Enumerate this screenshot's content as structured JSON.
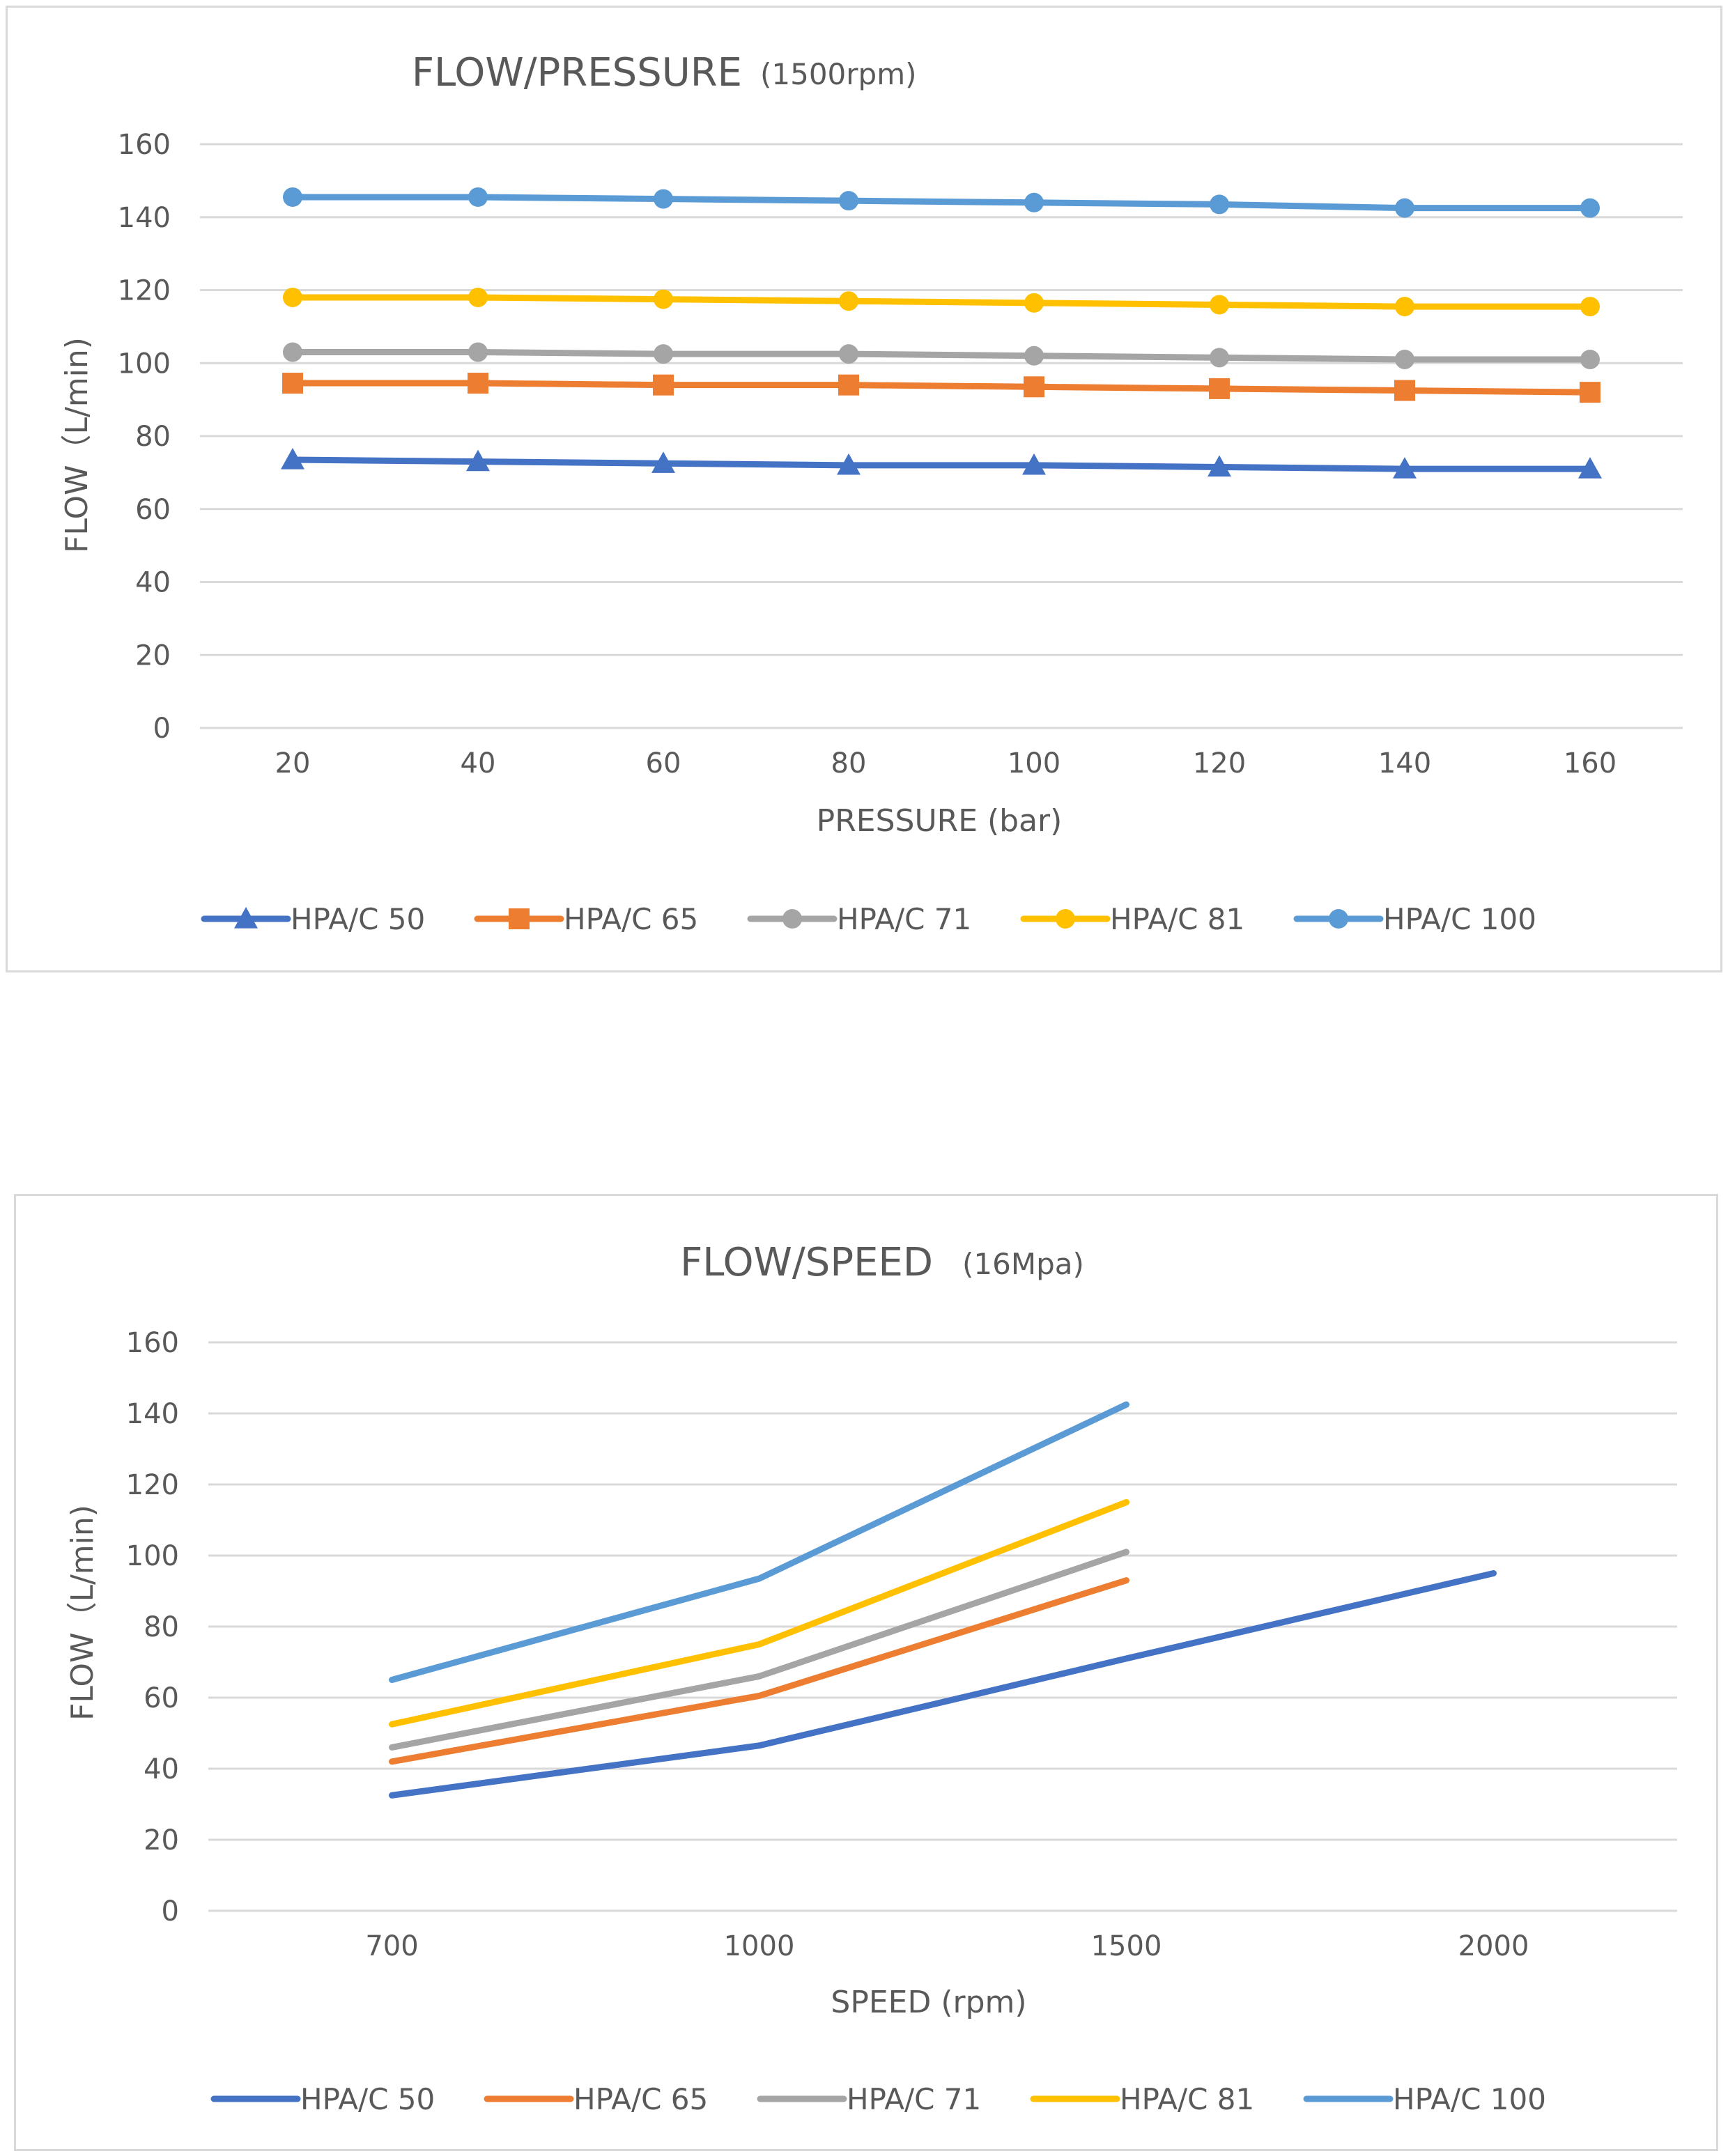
{
  "chart_data": [
    {
      "type": "line",
      "title": "FLOW/PRESSURE",
      "subtitle": "(1500rpm)",
      "xlabel": "PRESSURE (bar)",
      "ylabel": "FLOW（L/min)",
      "ylim": [
        0,
        160
      ],
      "yticks": [
        "0",
        "20",
        "40",
        "60",
        "80",
        "100",
        "120",
        "140",
        "160"
      ],
      "categories": [
        "20",
        "40",
        "60",
        "80",
        "100",
        "120",
        "140",
        "160"
      ],
      "grid": true,
      "legend_position": "bottom",
      "series": [
        {
          "name": "HPA/C 50",
          "color": "#4472c4",
          "marker": "triangle",
          "values": [
            73.5,
            73,
            72.5,
            72,
            72,
            71.5,
            71,
            71
          ]
        },
        {
          "name": "HPA/C 65",
          "color": "#ed7d31",
          "marker": "square",
          "values": [
            94.5,
            94.5,
            94,
            94,
            93.5,
            93,
            92.5,
            92
          ]
        },
        {
          "name": "HPA/C 71",
          "color": "#a5a5a5",
          "marker": "circle",
          "values": [
            103,
            103,
            102.5,
            102.5,
            102,
            101.5,
            101,
            101
          ]
        },
        {
          "name": "HPA/C 81",
          "color": "#ffc000",
          "marker": "circle",
          "values": [
            118,
            118,
            117.5,
            117,
            116.5,
            116,
            115.5,
            115.5
          ]
        },
        {
          "name": "HPA/C 100",
          "color": "#5b9bd5",
          "marker": "circle",
          "values": [
            145.5,
            145.5,
            145,
            144.5,
            144,
            143.5,
            142.5,
            142.5
          ]
        }
      ]
    },
    {
      "type": "line",
      "title": "FLOW/SPEED",
      "subtitle": "(16Mpa)",
      "xlabel": "SPEED (rpm)",
      "ylabel": "FLOW（L/min)",
      "ylim": [
        0,
        160
      ],
      "yticks": [
        "0",
        "20",
        "40",
        "60",
        "80",
        "100",
        "120",
        "140",
        "160"
      ],
      "categories": [
        "700",
        "1000",
        "1500",
        "2000"
      ],
      "grid": true,
      "legend_position": "bottom",
      "series": [
        {
          "name": "HPA/C 50",
          "color": "#4472c4",
          "marker": "none",
          "values": [
            32.5,
            46.5,
            71,
            95
          ]
        },
        {
          "name": "HPA/C 65",
          "color": "#ed7d31",
          "marker": "none",
          "values": [
            42,
            60.5,
            93,
            null
          ]
        },
        {
          "name": "HPA/C 71",
          "color": "#a5a5a5",
          "marker": "none",
          "values": [
            46,
            66,
            101,
            null
          ]
        },
        {
          "name": "HPA/C 81",
          "color": "#ffc000",
          "marker": "none",
          "values": [
            52.5,
            75,
            115,
            null
          ]
        },
        {
          "name": "HPA/C 100",
          "color": "#5b9bd5",
          "marker": "none",
          "values": [
            65,
            93.5,
            142.5,
            null
          ]
        }
      ]
    }
  ]
}
